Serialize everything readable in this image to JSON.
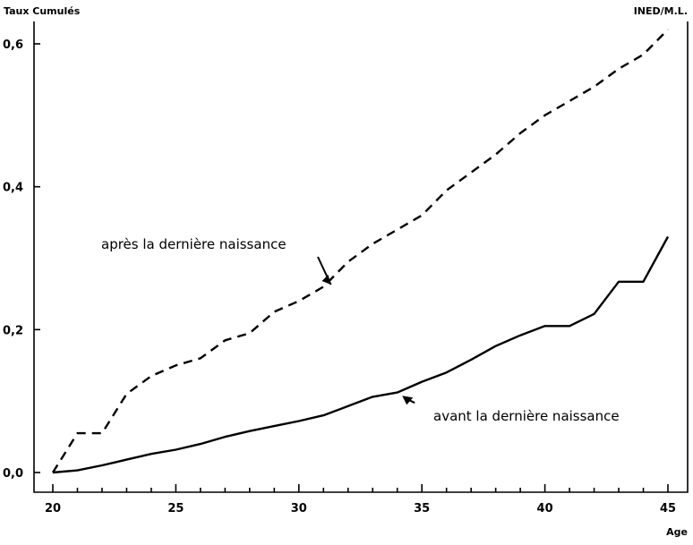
{
  "chart_data": {
    "type": "line",
    "title": "",
    "ylabel": "Taux Cumulés",
    "xlabel": "Age",
    "credit": "INED/M.L.",
    "xlim": [
      20,
      45
    ],
    "ylim": [
      0,
      0.62
    ],
    "x_ticks": [
      20,
      25,
      30,
      35,
      40,
      45
    ],
    "y_ticks": [
      0.0,
      0.2,
      0.4,
      0.6
    ],
    "y_tick_labels": [
      "0,0",
      "0,2",
      "0,4",
      "0,6"
    ],
    "x_tick_labels": [
      "20",
      "25",
      "30",
      "35",
      "40",
      "45"
    ],
    "grid": false,
    "x": [
      20,
      21,
      22,
      23,
      24,
      25,
      26,
      27,
      28,
      29,
      30,
      31,
      32,
      33,
      34,
      35,
      36,
      37,
      38,
      39,
      40,
      41,
      42,
      43,
      44,
      45
    ],
    "series": [
      {
        "name": "après la dernière naissance",
        "style": "dashed",
        "color": "#000000",
        "values": [
          0.0,
          0.055,
          0.055,
          0.11,
          0.135,
          0.15,
          0.16,
          0.185,
          0.195,
          0.225,
          0.24,
          0.26,
          0.295,
          0.32,
          0.34,
          0.36,
          0.395,
          0.42,
          0.445,
          0.475,
          0.5,
          0.52,
          0.54,
          0.565,
          0.585,
          0.62
        ]
      },
      {
        "name": "avant la dernière naissance",
        "style": "solid",
        "color": "#000000",
        "values": [
          0.0,
          0.003,
          0.01,
          0.018,
          0.026,
          0.032,
          0.04,
          0.05,
          0.058,
          0.065,
          0.072,
          0.08,
          0.093,
          0.106,
          0.112,
          0.127,
          0.14,
          0.158,
          0.177,
          0.192,
          0.205,
          0.205,
          0.222,
          0.267,
          0.267,
          0.33
        ]
      }
    ],
    "annotations": [
      {
        "text": "après la dernière naissance",
        "series": 0,
        "arrow_to_x": 31.3
      },
      {
        "text": "avant la dernière naissance",
        "series": 1,
        "arrow_to_x": 34.2
      }
    ]
  }
}
